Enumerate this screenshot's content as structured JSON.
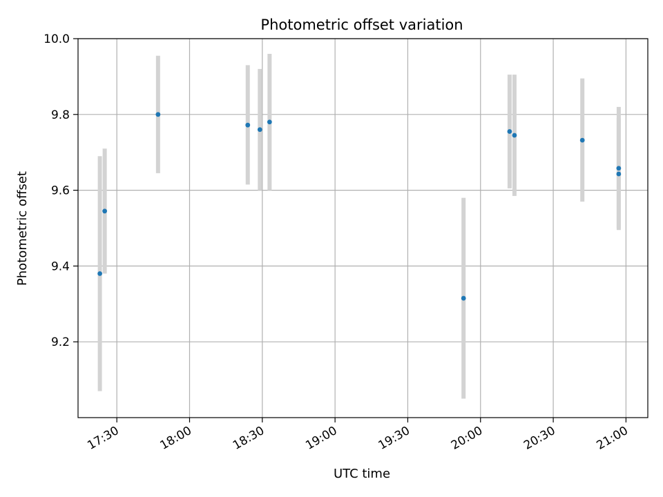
{
  "chart_data": {
    "type": "scatter",
    "title": "Photometric offset variation",
    "xlabel": "UTC time",
    "ylabel": "Photometric offset",
    "xlim": [
      "17:14",
      "21:09"
    ],
    "ylim": [
      9.0,
      10.0
    ],
    "xticks": [
      "17:30",
      "18:00",
      "18:30",
      "19:00",
      "19:30",
      "20:00",
      "20:30",
      "21:00"
    ],
    "yticks": [
      "9.2",
      "9.4",
      "9.6",
      "9.8",
      "10.0"
    ],
    "grid": true,
    "point_color": "#1f77b4",
    "errorbar_color": "#d3d3d3",
    "series": [
      {
        "points": [
          {
            "x": "17:25",
            "y": 9.545,
            "yerr_low": 9.38,
            "yerr_high": 9.71
          },
          {
            "x": "17:23",
            "y": 9.38,
            "yerr_low": 9.07,
            "yerr_high": 9.69
          },
          {
            "x": "17:47",
            "y": 9.8,
            "yerr_low": 9.645,
            "yerr_high": 9.955
          },
          {
            "x": "18:24",
            "y": 9.772,
            "yerr_low": 9.615,
            "yerr_high": 9.93
          },
          {
            "x": "18:29",
            "y": 9.76,
            "yerr_low": 9.6,
            "yerr_high": 9.92
          },
          {
            "x": "18:33",
            "y": 9.78,
            "yerr_low": 9.6,
            "yerr_high": 9.96
          },
          {
            "x": "19:53",
            "y": 9.315,
            "yerr_low": 9.05,
            "yerr_high": 9.58
          },
          {
            "x": "20:12",
            "y": 9.755,
            "yerr_low": 9.605,
            "yerr_high": 9.905
          },
          {
            "x": "20:14",
            "y": 9.745,
            "yerr_low": 9.585,
            "yerr_high": 9.905
          },
          {
            "x": "20:42",
            "y": 9.732,
            "yerr_low": 9.57,
            "yerr_high": 9.895
          },
          {
            "x": "20:57",
            "y": 9.643,
            "yerr_low": 9.495,
            "yerr_high": 9.79
          },
          {
            "x": "20:57",
            "y": 9.658,
            "yerr_low": 9.5,
            "yerr_high": 9.82
          }
        ]
      }
    ]
  }
}
